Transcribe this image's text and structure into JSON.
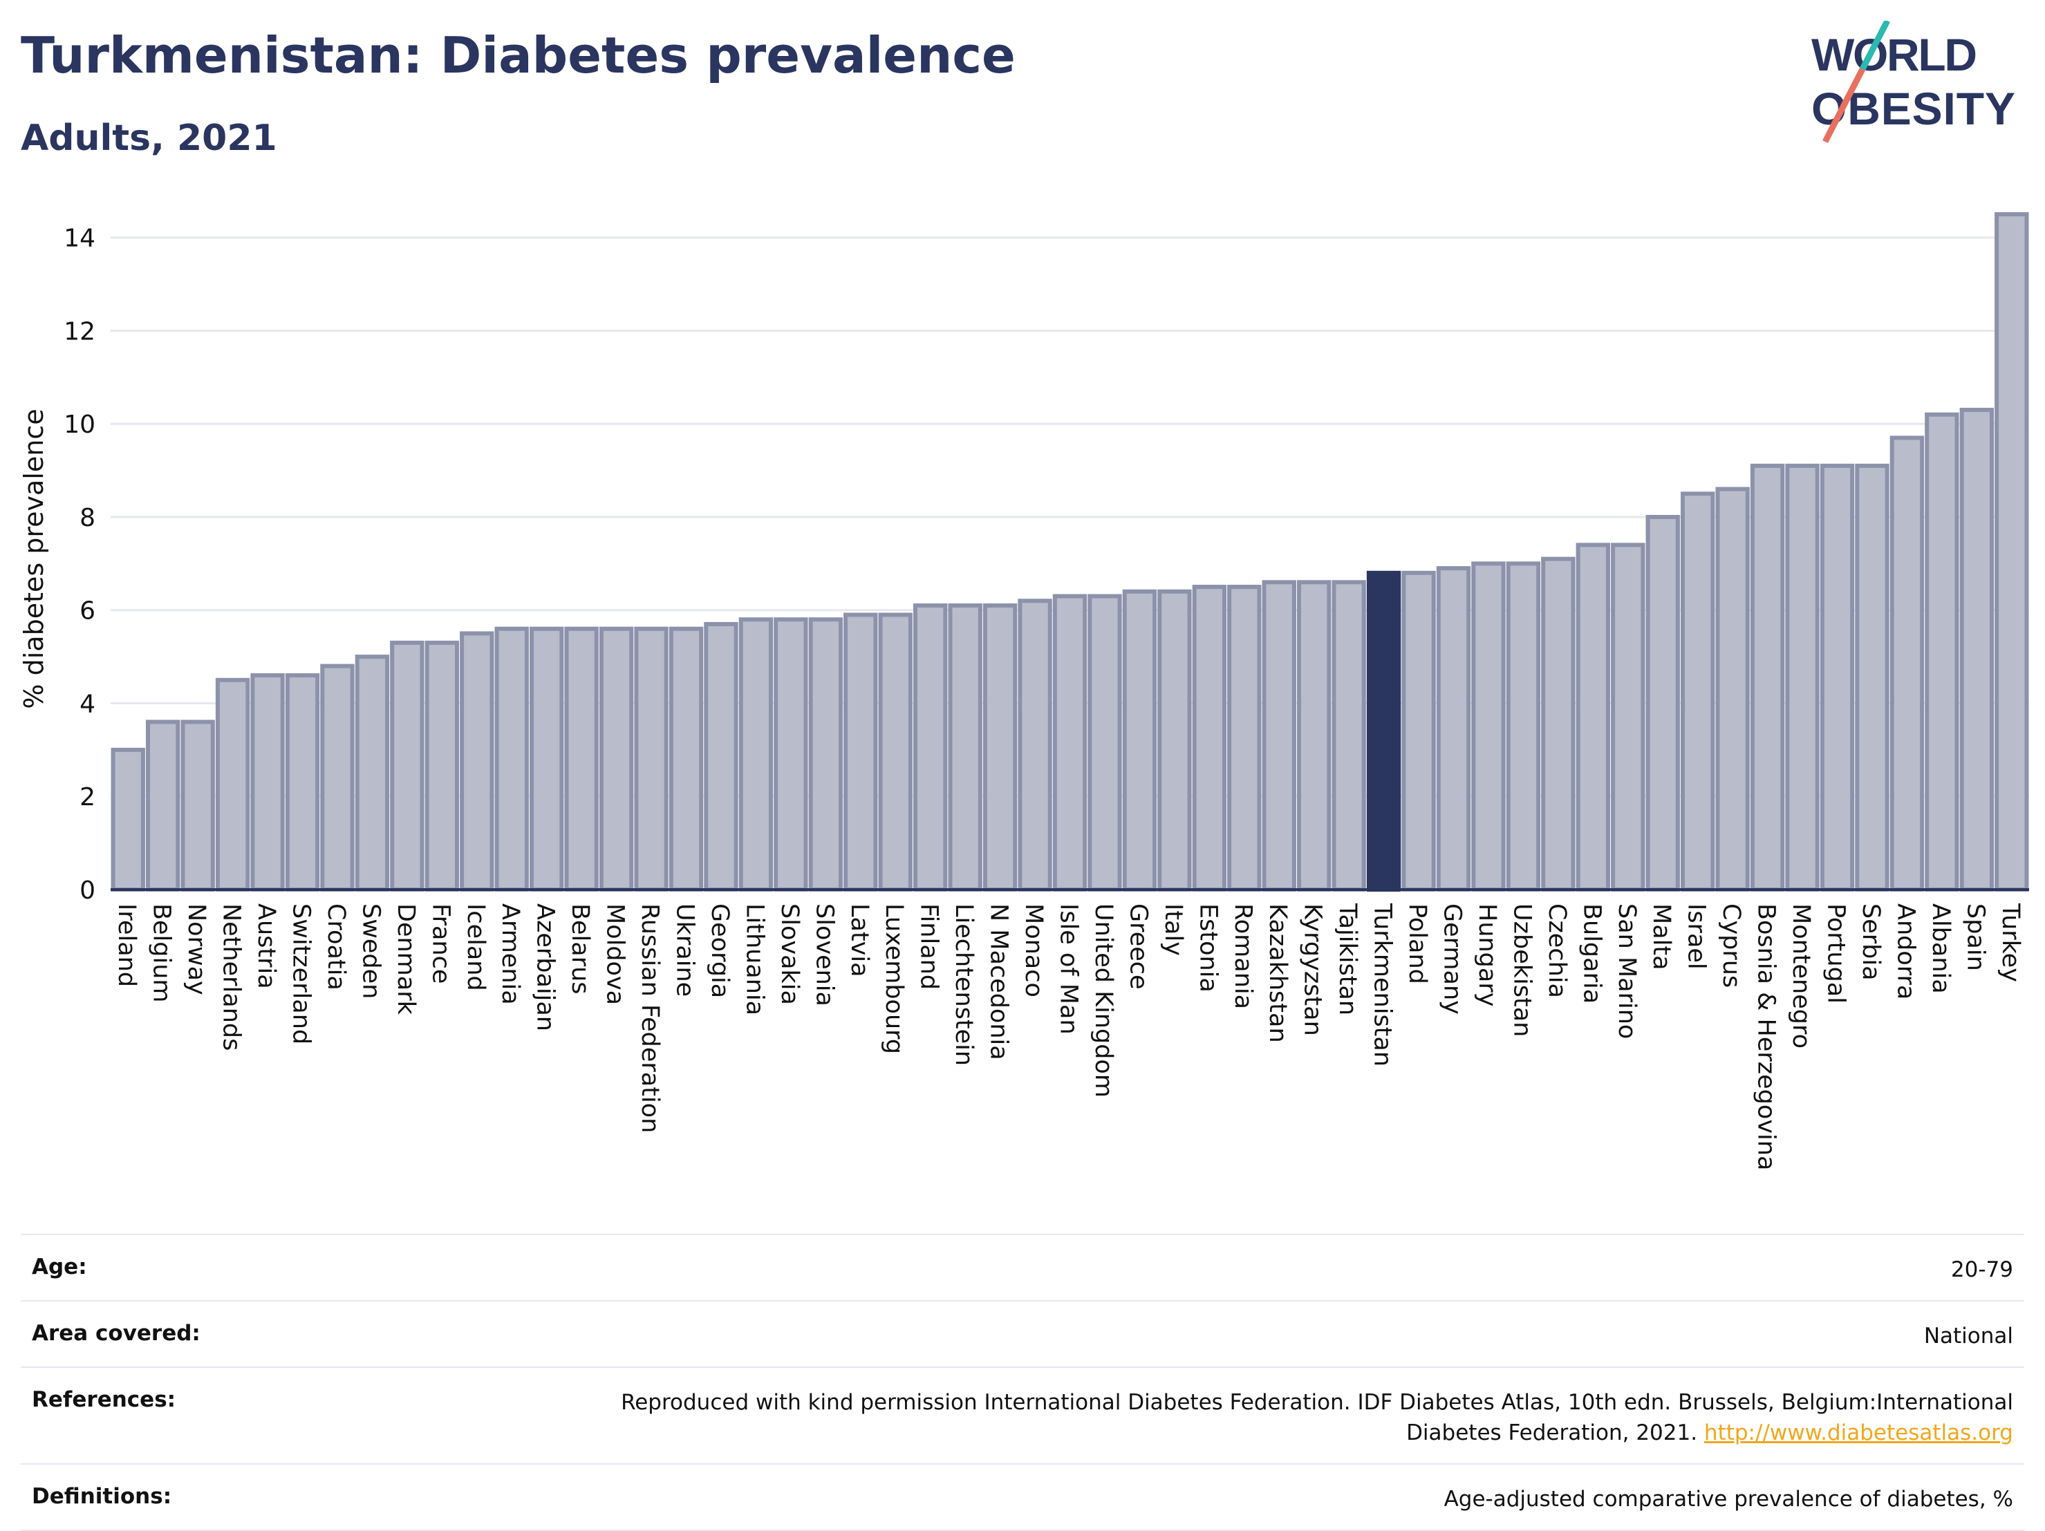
{
  "header": {
    "title": "Turkmenistan: Diabetes prevalence",
    "subtitle": "Adults, 2021"
  },
  "logo": {
    "line1": "WORLD",
    "line2": "OBESITY",
    "accent_colors": [
      "#2bb9b0",
      "#e8705f"
    ],
    "text_color": "#2a3560"
  },
  "chart_data": {
    "type": "bar",
    "ylabel": "% diabetes prevalence",
    "ylim": [
      0,
      15
    ],
    "yticks": [
      0,
      2,
      4,
      6,
      8,
      10,
      12,
      14
    ],
    "grid": true,
    "highlight": "Turkmenistan",
    "colors": {
      "bar": "#b8bccb",
      "bar_border": "#8c92aa",
      "highlight": "#2a3560"
    },
    "categories": [
      "Ireland",
      "Belgium",
      "Norway",
      "Netherlands",
      "Austria",
      "Switzerland",
      "Croatia",
      "Sweden",
      "Denmark",
      "France",
      "Iceland",
      "Armenia",
      "Azerbaijan",
      "Belarus",
      "Moldova",
      "Russian Federation",
      "Ukraine",
      "Georgia",
      "Lithuania",
      "Slovakia",
      "Slovenia",
      "Latvia",
      "Luxembourg",
      "Finland",
      "Liechtenstein",
      "N Macedonia",
      "Monaco",
      "Isle of Man",
      "United Kingdom",
      "Greece",
      "Italy",
      "Estonia",
      "Romania",
      "Kazakhstan",
      "Kyrgyzstan",
      "Tajikistan",
      "Turkmenistan",
      "Poland",
      "Germany",
      "Hungary",
      "Uzbekistan",
      "Czechia",
      "Bulgaria",
      "San Marino",
      "Malta",
      "Israel",
      "Cyprus",
      "Bosnia & Herzegovina",
      "Montenegro",
      "Portugal",
      "Serbia",
      "Andorra",
      "Albania",
      "Spain",
      "Turkey"
    ],
    "values": [
      3.0,
      3.6,
      3.6,
      4.5,
      4.6,
      4.6,
      4.8,
      5.0,
      5.3,
      5.3,
      5.5,
      5.6,
      5.6,
      5.6,
      5.6,
      5.6,
      5.6,
      5.7,
      5.8,
      5.8,
      5.8,
      5.9,
      5.9,
      6.1,
      6.1,
      6.1,
      6.2,
      6.3,
      6.3,
      6.4,
      6.4,
      6.5,
      6.5,
      6.6,
      6.6,
      6.6,
      6.8,
      6.8,
      6.9,
      7.0,
      7.0,
      7.1,
      7.4,
      7.4,
      8.0,
      8.5,
      8.6,
      9.1,
      9.1,
      9.1,
      9.1,
      9.7,
      10.2,
      10.3,
      14.5
    ]
  },
  "meta": {
    "age_label": "Age:",
    "age_value": "20-79",
    "area_label": "Area covered:",
    "area_value": "National",
    "references_label": "References:",
    "references_text": "Reproduced with kind permission International Diabetes Federation.  IDF Diabetes Atlas, 10th edn. Brussels, Belgium:International Diabetes Federation, 2021.",
    "references_link": "http://www.diabetesatlas.org",
    "definitions_label": "Definitions:",
    "definitions_value": "Age-adjusted comparative prevalence of diabetes, %"
  }
}
